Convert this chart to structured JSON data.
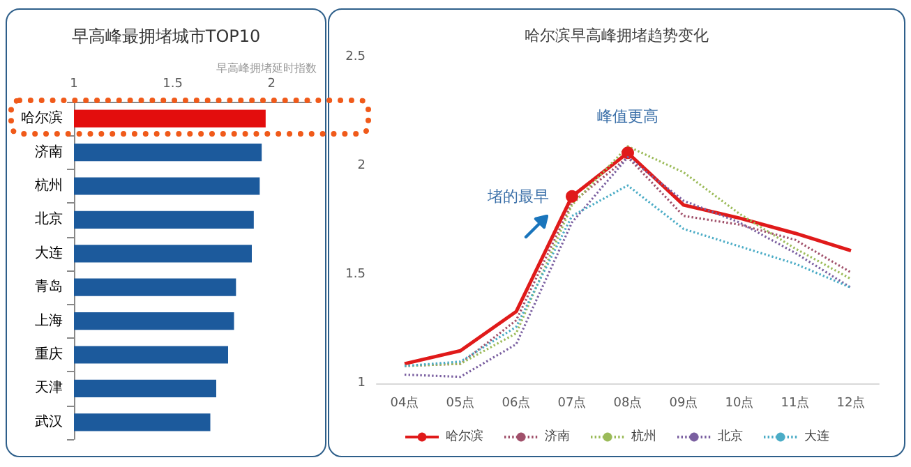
{
  "chart_data": [
    {
      "type": "bar",
      "orientation": "horizontal",
      "title": "早高峰最拥堵城市TOP10",
      "xlabel": "早高峰拥堵延时指数",
      "categories": [
        "哈尔滨",
        "济南",
        "杭州",
        "北京",
        "大连",
        "青岛",
        "上海",
        "重庆",
        "天津",
        "武汉"
      ],
      "values": [
        1.97,
        1.95,
        1.94,
        1.91,
        1.9,
        1.82,
        1.81,
        1.78,
        1.72,
        1.69
      ],
      "colors": [
        "#e30d0d",
        "#1c5a9c",
        "#1c5a9c",
        "#1c5a9c",
        "#1c5a9c",
        "#1c5a9c",
        "#1c5a9c",
        "#1c5a9c",
        "#1c5a9c",
        "#1c5a9c"
      ],
      "xlim": [
        1,
        2.2
      ],
      "xticks": [
        1,
        1.5,
        2
      ],
      "grid": false,
      "legend": false
    },
    {
      "type": "line",
      "title": "哈尔滨早高峰拥堵趋势变化",
      "categories": [
        "04点",
        "05点",
        "06点",
        "07点",
        "08点",
        "09点",
        "10点",
        "11点",
        "12点"
      ],
      "series": [
        {
          "name": "哈尔滨",
          "color": "#e01a1a",
          "line_style": "solid",
          "values": [
            1.09,
            1.15,
            1.33,
            1.86,
            2.06,
            1.82,
            1.76,
            1.69,
            1.61
          ]
        },
        {
          "name": "济南",
          "color": "#a0506a",
          "line_style": "dotted",
          "values": [
            1.08,
            1.09,
            1.29,
            1.83,
            2.04,
            1.77,
            1.73,
            1.66,
            1.51
          ]
        },
        {
          "name": "杭州",
          "color": "#9bbb59",
          "line_style": "dotted",
          "values": [
            1.08,
            1.09,
            1.23,
            1.82,
            2.09,
            1.97,
            1.78,
            1.62,
            1.48
          ]
        },
        {
          "name": "北京",
          "color": "#7a5fa0",
          "line_style": "dotted",
          "values": [
            1.04,
            1.03,
            1.18,
            1.74,
            2.04,
            1.84,
            1.74,
            1.6,
            1.44
          ]
        },
        {
          "name": "大连",
          "color": "#4bacc6",
          "line_style": "dotted",
          "values": [
            1.08,
            1.1,
            1.26,
            1.77,
            1.91,
            1.71,
            1.63,
            1.55,
            1.44
          ]
        }
      ],
      "ylim": [
        1,
        2.5
      ],
      "yticks": [
        1,
        1.5,
        2,
        2.5
      ],
      "grid": false,
      "legend": "bottom",
      "marker": "none",
      "annotations": [
        {
          "text": "堵的最早",
          "x": "07点",
          "y": 1.86
        },
        {
          "text": "峰值更高",
          "x": "08点",
          "y": 2.06
        }
      ]
    }
  ]
}
